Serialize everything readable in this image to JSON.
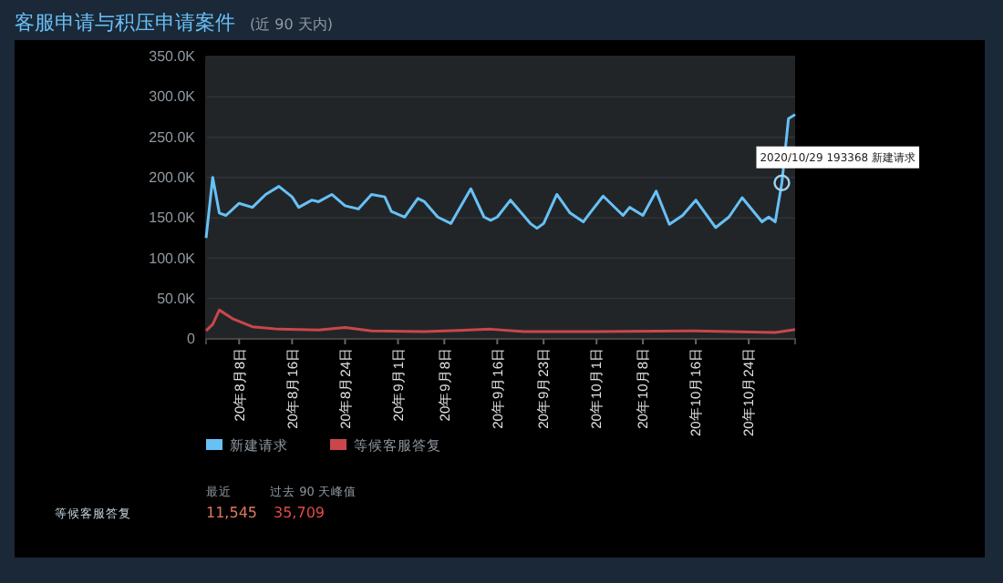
{
  "chart_data": {
    "type": "line",
    "title": "客服申请与积压申请案件",
    "subtitle": "(近 90 天内)",
    "ylim": [
      0,
      350000
    ],
    "yticks": [
      {
        "value": 0,
        "label": "0"
      },
      {
        "value": 50000,
        "label": "50.0K"
      },
      {
        "value": 100000,
        "label": "100.0K"
      },
      {
        "value": 150000,
        "label": "150.0K"
      },
      {
        "value": 200000,
        "label": "200.0K"
      },
      {
        "value": 250000,
        "label": "250.0K"
      },
      {
        "value": 300000,
        "label": "300.0K"
      },
      {
        "value": 350000,
        "label": "350.0K"
      }
    ],
    "xlim": [
      "2020-08-03",
      "2020-10-31"
    ],
    "xticks": [
      {
        "value": "2020-08-08",
        "label": "20年8月8日"
      },
      {
        "value": "2020-08-16",
        "label": "20年8月16日"
      },
      {
        "value": "2020-08-24",
        "label": "20年8月24日"
      },
      {
        "value": "2020-09-01",
        "label": "20年9月1日"
      },
      {
        "value": "2020-09-08",
        "label": "20年9月8日"
      },
      {
        "value": "2020-09-16",
        "label": "20年9月16日"
      },
      {
        "value": "2020-09-23",
        "label": "20年9月23日"
      },
      {
        "value": "2020-10-01",
        "label": "20年10月1日"
      },
      {
        "value": "2020-10-08",
        "label": "20年10月8日"
      },
      {
        "value": "2020-10-16",
        "label": "20年10月16日"
      },
      {
        "value": "2020-10-24",
        "label": "20年10月24日"
      }
    ],
    "grid": "y",
    "legend": "bottom",
    "series": [
      {
        "name": "新建请求",
        "color": "#67c1f5",
        "x": [
          "2020-08-03",
          "2020-08-04",
          "2020-08-05",
          "2020-08-06",
          "2020-08-08",
          "2020-08-10",
          "2020-08-12",
          "2020-08-14",
          "2020-08-16",
          "2020-08-17",
          "2020-08-19",
          "2020-08-20",
          "2020-08-22",
          "2020-08-24",
          "2020-08-25",
          "2020-08-26",
          "2020-08-28",
          "2020-08-30",
          "2020-08-31",
          "2020-09-02",
          "2020-09-04",
          "2020-09-05",
          "2020-09-07",
          "2020-09-09",
          "2020-09-12",
          "2020-09-14",
          "2020-09-15",
          "2020-09-16",
          "2020-09-18",
          "2020-09-21",
          "2020-09-22",
          "2020-09-23",
          "2020-09-25",
          "2020-09-27",
          "2020-09-29",
          "2020-09-30",
          "2020-10-02",
          "2020-10-05",
          "2020-10-06",
          "2020-10-08",
          "2020-10-10",
          "2020-10-12",
          "2020-10-14",
          "2020-10-16",
          "2020-10-19",
          "2020-10-21",
          "2020-10-23",
          "2020-10-26",
          "2020-10-27",
          "2020-10-28",
          "2020-10-29",
          "2020-10-30",
          "2020-10-31"
        ],
        "values": [
          125000,
          200000,
          156000,
          153000,
          168000,
          163000,
          179000,
          189000,
          176000,
          163000,
          172000,
          170000,
          179000,
          165000,
          163000,
          161000,
          179000,
          176000,
          158000,
          151000,
          174000,
          170000,
          151000,
          143000,
          186000,
          151000,
          147000,
          151000,
          172000,
          143000,
          137000,
          143000,
          179000,
          156000,
          145000,
          156000,
          177000,
          153000,
          163000,
          153000,
          183000,
          142000,
          153000,
          172000,
          138000,
          151000,
          175000,
          145000,
          151000,
          145000,
          193368,
          273000,
          278000
        ]
      },
      {
        "name": "等候客服答复",
        "color": "#c9474a",
        "x": [
          "2020-08-03",
          "2020-08-04",
          "2020-08-05",
          "2020-08-07",
          "2020-08-10",
          "2020-08-14",
          "2020-08-20",
          "2020-08-24",
          "2020-08-28",
          "2020-09-05",
          "2020-09-15",
          "2020-09-20",
          "2020-10-01",
          "2020-10-15",
          "2020-10-28",
          "2020-10-31"
        ],
        "values": [
          10000,
          18000,
          35709,
          25000,
          15000,
          12000,
          11000,
          14000,
          10000,
          9000,
          12000,
          9000,
          9000,
          10000,
          8000,
          11545
        ]
      }
    ],
    "annotations": [
      {
        "text": "2020/10/29 193368 新建请求",
        "x": "2020-10-29",
        "y": 193368
      },
      "最近",
      "过去 90 天峰值",
      "等候客服答复",
      "11,545",
      "35,709"
    ]
  }
}
